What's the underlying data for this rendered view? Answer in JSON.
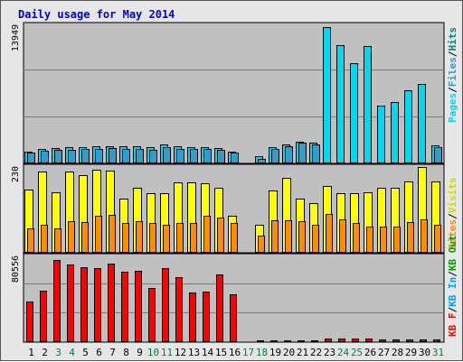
{
  "title": "Daily usage for May 2014",
  "colors": {
    "pages": "#00d8f0",
    "files": "#2f9ec9",
    "visits": "#ffff00",
    "sites": "#ff8c00",
    "kbf": "#ff0000",
    "kbin": "#00a0ff",
    "kbout": "#00a000",
    "weekend": "#008040",
    "weekday": "#000000",
    "title": "#0000dd",
    "panel_bg": "#c0c0c0",
    "frame_bg": "#e6e6e6",
    "grid": "#7a7a7a"
  },
  "chart_data": [
    {
      "type": "bar",
      "name_label": "Pages / Files / Hits",
      "max_label": "13949",
      "ylim": [
        0,
        13949
      ],
      "categories": [
        "1",
        "2",
        "3",
        "4",
        "5",
        "6",
        "7",
        "8",
        "9",
        "10",
        "11",
        "12",
        "13",
        "14",
        "15",
        "16",
        "17",
        "18",
        "19",
        "20",
        "21",
        "22",
        "23",
        "24",
        "25",
        "26",
        "27",
        "28",
        "29",
        "30",
        "31"
      ],
      "series": [
        {
          "name": "Hits",
          "values": [
            1200,
            1450,
            1580,
            1620,
            1690,
            1730,
            1780,
            1760,
            1700,
            1650,
            1900,
            1720,
            1650,
            1680,
            1600,
            1170,
            0,
            700,
            1630,
            1910,
            2200,
            2130,
            13900,
            12050,
            10170,
            11900,
            5890,
            6200,
            7450,
            8050,
            1880
          ]
        },
        {
          "name": "Files",
          "values": [
            1060,
            1310,
            1370,
            1400,
            1470,
            1500,
            1530,
            1500,
            1440,
            1400,
            1650,
            1480,
            1430,
            1430,
            1380,
            1060,
            0,
            500,
            1450,
            1770,
            2100,
            1960,
            0,
            0,
            0,
            0,
            0,
            0,
            0,
            0,
            1610
          ]
        },
        {
          "name": "Pages",
          "values": [
            0,
            0,
            0,
            0,
            0,
            0,
            0,
            0,
            0,
            0,
            0,
            0,
            0,
            0,
            0,
            0,
            0,
            0,
            0,
            0,
            0,
            0,
            0,
            0,
            0,
            0,
            0,
            0,
            0,
            0,
            0
          ]
        }
      ]
    },
    {
      "type": "bar",
      "name_label": "Visits / Sites",
      "max_label": "230",
      "ylim": [
        0,
        230
      ],
      "categories": [
        "1",
        "2",
        "3",
        "4",
        "5",
        "6",
        "7",
        "8",
        "9",
        "10",
        "11",
        "12",
        "13",
        "14",
        "15",
        "16",
        "17",
        "18",
        "19",
        "20",
        "21",
        "22",
        "23",
        "24",
        "25",
        "26",
        "27",
        "28",
        "29",
        "30",
        "31"
      ],
      "series": [
        {
          "name": "Visits",
          "values": [
            172,
            220,
            165,
            220,
            210,
            225,
            222,
            148,
            177,
            162,
            162,
            190,
            190,
            188,
            175,
            100,
            0,
            75,
            170,
            203,
            148,
            135,
            180,
            162,
            162,
            165,
            175,
            175,
            194,
            232,
            194
          ]
        },
        {
          "name": "Sites",
          "values": [
            67,
            75,
            65,
            85,
            83,
            100,
            102,
            80,
            86,
            80,
            75,
            80,
            80,
            100,
            95,
            80,
            0,
            47,
            87,
            89,
            85,
            77,
            105,
            91,
            80,
            70,
            70,
            70,
            83,
            90,
            75
          ]
        }
      ]
    },
    {
      "type": "bar",
      "name_label": "KB F / KB In / KB Out",
      "max_label": "80556",
      "ylim": [
        0,
        80556
      ],
      "categories": [
        "1",
        "2",
        "3",
        "4",
        "5",
        "6",
        "7",
        "8",
        "9",
        "10",
        "11",
        "12",
        "13",
        "14",
        "15",
        "16",
        "17",
        "18",
        "19",
        "20",
        "21",
        "22",
        "23",
        "24",
        "25",
        "26",
        "27",
        "28",
        "29",
        "30",
        "31"
      ],
      "series": [
        {
          "name": "KB F",
          "values": [
            38300,
            48900,
            77900,
            73300,
            70900,
            70700,
            74500,
            67200,
            67500,
            51400,
            70700,
            61400,
            47400,
            48100,
            63900,
            45600,
            0,
            600,
            600,
            700,
            750,
            800,
            3600,
            3200,
            3300,
            3000,
            2500,
            2500,
            2500,
            2600,
            2300
          ]
        }
      ]
    }
  ],
  "side_labels": {
    "pages": "Pages",
    "files": "Files",
    "hits": "Hits",
    "visits": "Visits",
    "sites": "Sites",
    "kbf": "KB F",
    "kbin": "KB In",
    "kbout": "KB Out",
    "sep": "/"
  },
  "weekend_days": [
    3,
    4,
    10,
    11,
    17,
    18,
    24,
    25,
    31
  ]
}
